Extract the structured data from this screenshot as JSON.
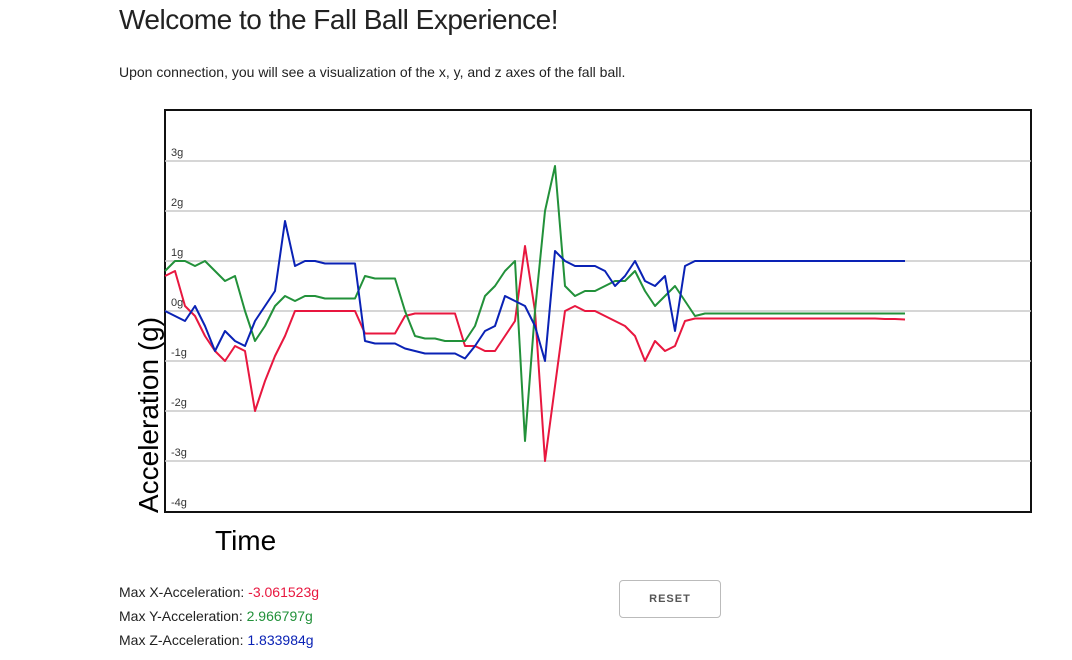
{
  "header": {
    "title": "Welcome to the Fall Ball Experience!",
    "subtitle": "Upon connection, you will see a visualization of the x, y, and z axes of the fall ball."
  },
  "chart_data": {
    "type": "line",
    "ylabel": "Acceleration (g)",
    "xlabel": "Time",
    "ylim": [
      -4,
      4
    ],
    "yticks": [
      {
        "value": 3,
        "label": "3g"
      },
      {
        "value": 2,
        "label": "2g"
      },
      {
        "value": 1,
        "label": "1g"
      },
      {
        "value": 0,
        "label": "0g"
      },
      {
        "value": -1,
        "label": "-1g"
      },
      {
        "value": -2,
        "label": "-2g"
      },
      {
        "value": -3,
        "label": "-3g"
      },
      {
        "value": -4,
        "label": "-4g"
      }
    ],
    "grid": true,
    "series": [
      {
        "color": "#e8173f",
        "values": [
          0.7,
          0.8,
          0.1,
          -0.1,
          -0.5,
          -0.8,
          -1.0,
          -0.7,
          -0.8,
          -2.0,
          -1.4,
          -0.9,
          -0.5,
          0.0,
          0.0,
          0.0,
          0.0,
          0.0,
          0.0,
          0.0,
          -0.45,
          -0.45,
          -0.45,
          -0.45,
          -0.1,
          -0.05,
          -0.05,
          -0.05,
          -0.05,
          -0.05,
          -0.7,
          -0.7,
          -0.8,
          -0.8,
          -0.5,
          -0.2,
          1.3,
          0.0,
          -3.0,
          -1.5,
          0.0,
          0.1,
          0.0,
          0.0,
          -0.1,
          -0.2,
          -0.3,
          -0.5,
          -1.0,
          -0.6,
          -0.8,
          -0.7,
          -0.2,
          -0.15,
          -0.15,
          -0.15,
          -0.15,
          -0.15,
          -0.15,
          -0.15,
          -0.15,
          -0.15,
          -0.15,
          -0.15,
          -0.15,
          -0.15,
          -0.15,
          -0.15,
          -0.15,
          -0.15,
          -0.15,
          -0.15,
          -0.16,
          -0.16,
          -0.17
        ]
      },
      {
        "color": "#22913a",
        "values": [
          0.8,
          1.0,
          1.0,
          0.9,
          1.0,
          0.8,
          0.6,
          0.7,
          0.0,
          -0.6,
          -0.3,
          0.1,
          0.3,
          0.2,
          0.3,
          0.3,
          0.25,
          0.25,
          0.25,
          0.25,
          0.7,
          0.65,
          0.65,
          0.65,
          0.0,
          -0.5,
          -0.55,
          -0.55,
          -0.6,
          -0.6,
          -0.6,
          -0.3,
          0.3,
          0.5,
          0.8,
          1.0,
          -2.6,
          0.0,
          2.0,
          2.9,
          0.5,
          0.3,
          0.4,
          0.4,
          0.5,
          0.6,
          0.6,
          0.8,
          0.4,
          0.1,
          0.3,
          0.5,
          0.2,
          -0.1,
          -0.05,
          -0.05,
          -0.05,
          -0.05,
          -0.05,
          -0.05,
          -0.05,
          -0.05,
          -0.05,
          -0.05,
          -0.05,
          -0.05,
          -0.05,
          -0.05,
          -0.05,
          -0.05,
          -0.05,
          -0.05,
          -0.05,
          -0.05,
          -0.05
        ]
      },
      {
        "color": "#0a22b5",
        "values": [
          0.0,
          -0.1,
          -0.2,
          0.1,
          -0.3,
          -0.8,
          -0.4,
          -0.6,
          -0.7,
          -0.2,
          0.1,
          0.4,
          1.8,
          0.9,
          1.0,
          1.0,
          0.95,
          0.95,
          0.95,
          0.95,
          -0.6,
          -0.65,
          -0.65,
          -0.65,
          -0.75,
          -0.8,
          -0.85,
          -0.85,
          -0.85,
          -0.85,
          -0.95,
          -0.7,
          -0.4,
          -0.3,
          0.3,
          0.2,
          0.1,
          -0.3,
          -1.0,
          1.2,
          1.0,
          0.9,
          0.9,
          0.9,
          0.8,
          0.5,
          0.7,
          1.0,
          0.6,
          0.5,
          0.7,
          -0.4,
          0.9,
          1.0,
          1.0,
          1.0,
          1.0,
          1.0,
          1.0,
          1.0,
          1.0,
          1.0,
          1.0,
          1.0,
          1.0,
          1.0,
          1.0,
          1.0,
          1.0,
          1.0,
          1.0,
          1.0,
          1.0,
          1.0,
          1.0
        ]
      }
    ]
  },
  "stats": [
    {
      "label": "Max X-Acceleration:",
      "value": "-3.061523g",
      "color": "#e8173f"
    },
    {
      "label": "Max Y-Acceleration:",
      "value": "2.966797g",
      "color": "#22913a"
    },
    {
      "label": "Max Z-Acceleration:",
      "value": "1.833984g",
      "color": "#0a22b5"
    }
  ],
  "button": {
    "label": "RESET"
  }
}
